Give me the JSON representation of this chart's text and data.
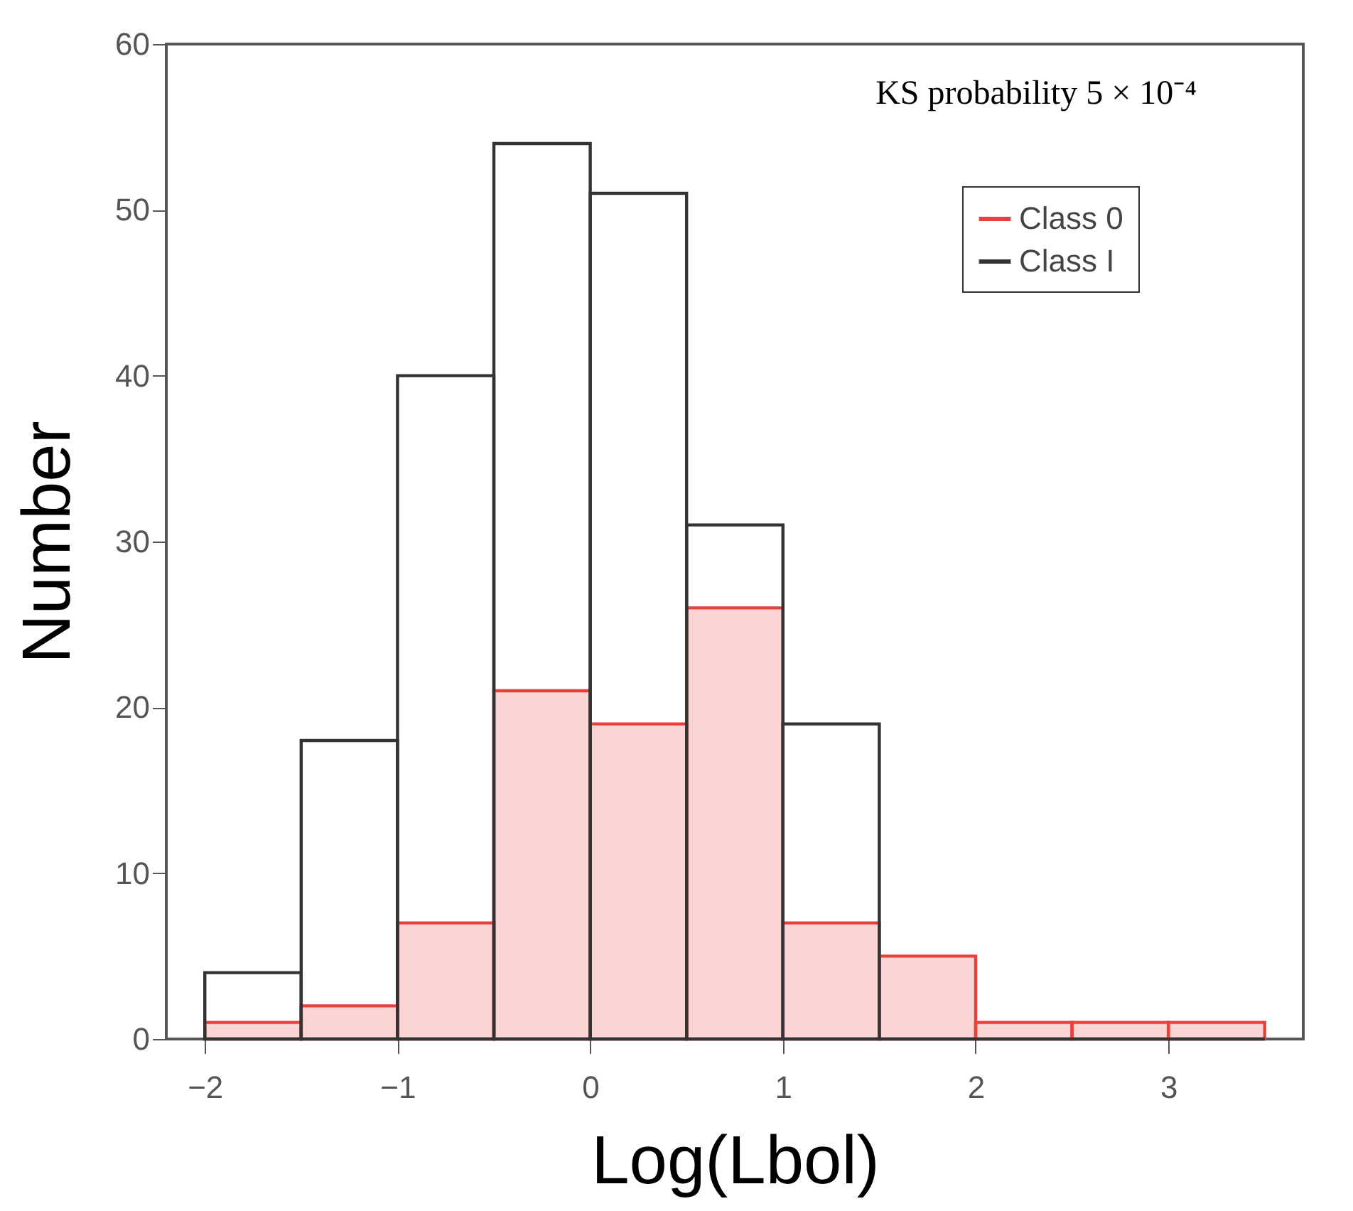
{
  "chart_data": {
    "type": "histogram",
    "xlabel": "Log(Lbol)",
    "ylabel": "Number",
    "annotations": [
      "KS probability 5 × 10⁻⁴"
    ],
    "bins": [
      -2,
      -1.5,
      -1,
      -0.5,
      0,
      0.5,
      1,
      1.5,
      2,
      2.5,
      3,
      3.5
    ],
    "series": [
      {
        "name": "Class 0",
        "color": "#e8413c",
        "values": [
          1,
          2,
          7,
          21,
          19,
          26,
          7,
          5,
          1,
          1,
          1
        ]
      },
      {
        "name": "Class I",
        "color": "#333333",
        "values": [
          4,
          18,
          40,
          54,
          51,
          31,
          19,
          0,
          0,
          0,
          0
        ]
      }
    ],
    "xlim": [
      -2.2,
      3.7
    ],
    "ylim": [
      0,
      60
    ],
    "xticks": [
      -2,
      -1,
      0,
      1,
      2,
      3
    ],
    "yticks": [
      0,
      10,
      20,
      30,
      40,
      50,
      60
    ],
    "grid": false,
    "legend": "top right"
  }
}
